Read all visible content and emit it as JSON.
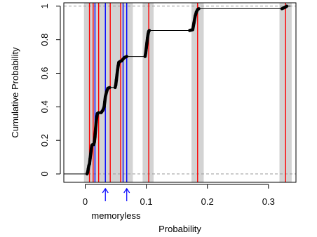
{
  "chart_data": {
    "type": "line",
    "xlabel": "Probability",
    "ylabel": "Cumulative Probability",
    "xlim": [
      -0.035,
      0.345
    ],
    "ylim": [
      -0.05,
      1.02
    ],
    "x_ticks": [
      0,
      0.1,
      0.2,
      0.3
    ],
    "x_tick_labels": [
      "0",
      "0.1",
      "0.2",
      "0.3"
    ],
    "y_ticks": [
      0,
      0.2,
      0.4,
      0.6,
      0.8,
      1
    ],
    "y_tick_labels": [
      "0",
      "0.2",
      "0.4",
      "0.6",
      "0.8",
      "1"
    ],
    "reference_lines_y": [
      0,
      1
    ],
    "shaded_bands": [
      {
        "from": -0.002,
        "to": 0.044
      },
      {
        "from": 0.044,
        "to": 0.078
      },
      {
        "from": 0.094,
        "to": 0.112
      },
      {
        "from": 0.174,
        "to": 0.194
      },
      {
        "from": 0.318,
        "to": 0.338
      }
    ],
    "red_lines_x": [
      0.007,
      0.013,
      0.022,
      0.041,
      0.058,
      0.104,
      0.184,
      0.328
    ],
    "blue_lines_x": [
      0.016,
      0.033,
      0.062,
      0.068
    ],
    "annotation": {
      "text": "memoryless",
      "arrow_x": [
        0.033,
        0.068
      ],
      "color": "#0000ff"
    },
    "series": [
      {
        "points": [
          [
            -0.035,
            0.0
          ],
          [
            0.003,
            0.0
          ],
          [
            0.004,
            0.01
          ],
          [
            0.005,
            0.03
          ],
          [
            0.006,
            0.05
          ],
          [
            0.007,
            0.06
          ],
          [
            0.008,
            0.09
          ],
          [
            0.009,
            0.12
          ],
          [
            0.01,
            0.15
          ],
          [
            0.011,
            0.17
          ],
          [
            0.012,
            0.175
          ],
          [
            0.014,
            0.175
          ],
          [
            0.015,
            0.19
          ],
          [
            0.016,
            0.22
          ],
          [
            0.017,
            0.27
          ],
          [
            0.018,
            0.31
          ],
          [
            0.019,
            0.34
          ],
          [
            0.02,
            0.36
          ],
          [
            0.022,
            0.365
          ],
          [
            0.026,
            0.365
          ],
          [
            0.027,
            0.37
          ],
          [
            0.029,
            0.38
          ],
          [
            0.031,
            0.4
          ],
          [
            0.032,
            0.43
          ],
          [
            0.033,
            0.46
          ],
          [
            0.035,
            0.49
          ],
          [
            0.037,
            0.51
          ],
          [
            0.04,
            0.515
          ],
          [
            0.049,
            0.515
          ],
          [
            0.05,
            0.53
          ],
          [
            0.051,
            0.56
          ],
          [
            0.052,
            0.59
          ],
          [
            0.053,
            0.62
          ],
          [
            0.054,
            0.645
          ],
          [
            0.055,
            0.665
          ],
          [
            0.057,
            0.67
          ],
          [
            0.06,
            0.675
          ],
          [
            0.062,
            0.685
          ],
          [
            0.065,
            0.695
          ],
          [
            0.068,
            0.7
          ],
          [
            0.098,
            0.7
          ],
          [
            0.099,
            0.72
          ],
          [
            0.1,
            0.75
          ],
          [
            0.101,
            0.78
          ],
          [
            0.102,
            0.81
          ],
          [
            0.103,
            0.835
          ],
          [
            0.104,
            0.85
          ],
          [
            0.105,
            0.855
          ],
          [
            0.171,
            0.855
          ],
          [
            0.176,
            0.86
          ],
          [
            0.178,
            0.9
          ],
          [
            0.18,
            0.94
          ],
          [
            0.182,
            0.965
          ],
          [
            0.184,
            0.98
          ],
          [
            0.186,
            0.985
          ],
          [
            0.322,
            0.985
          ],
          [
            0.325,
            0.99
          ],
          [
            0.328,
            0.995
          ],
          [
            0.33,
            1.0
          ],
          [
            0.336,
            1.0
          ]
        ]
      }
    ]
  }
}
